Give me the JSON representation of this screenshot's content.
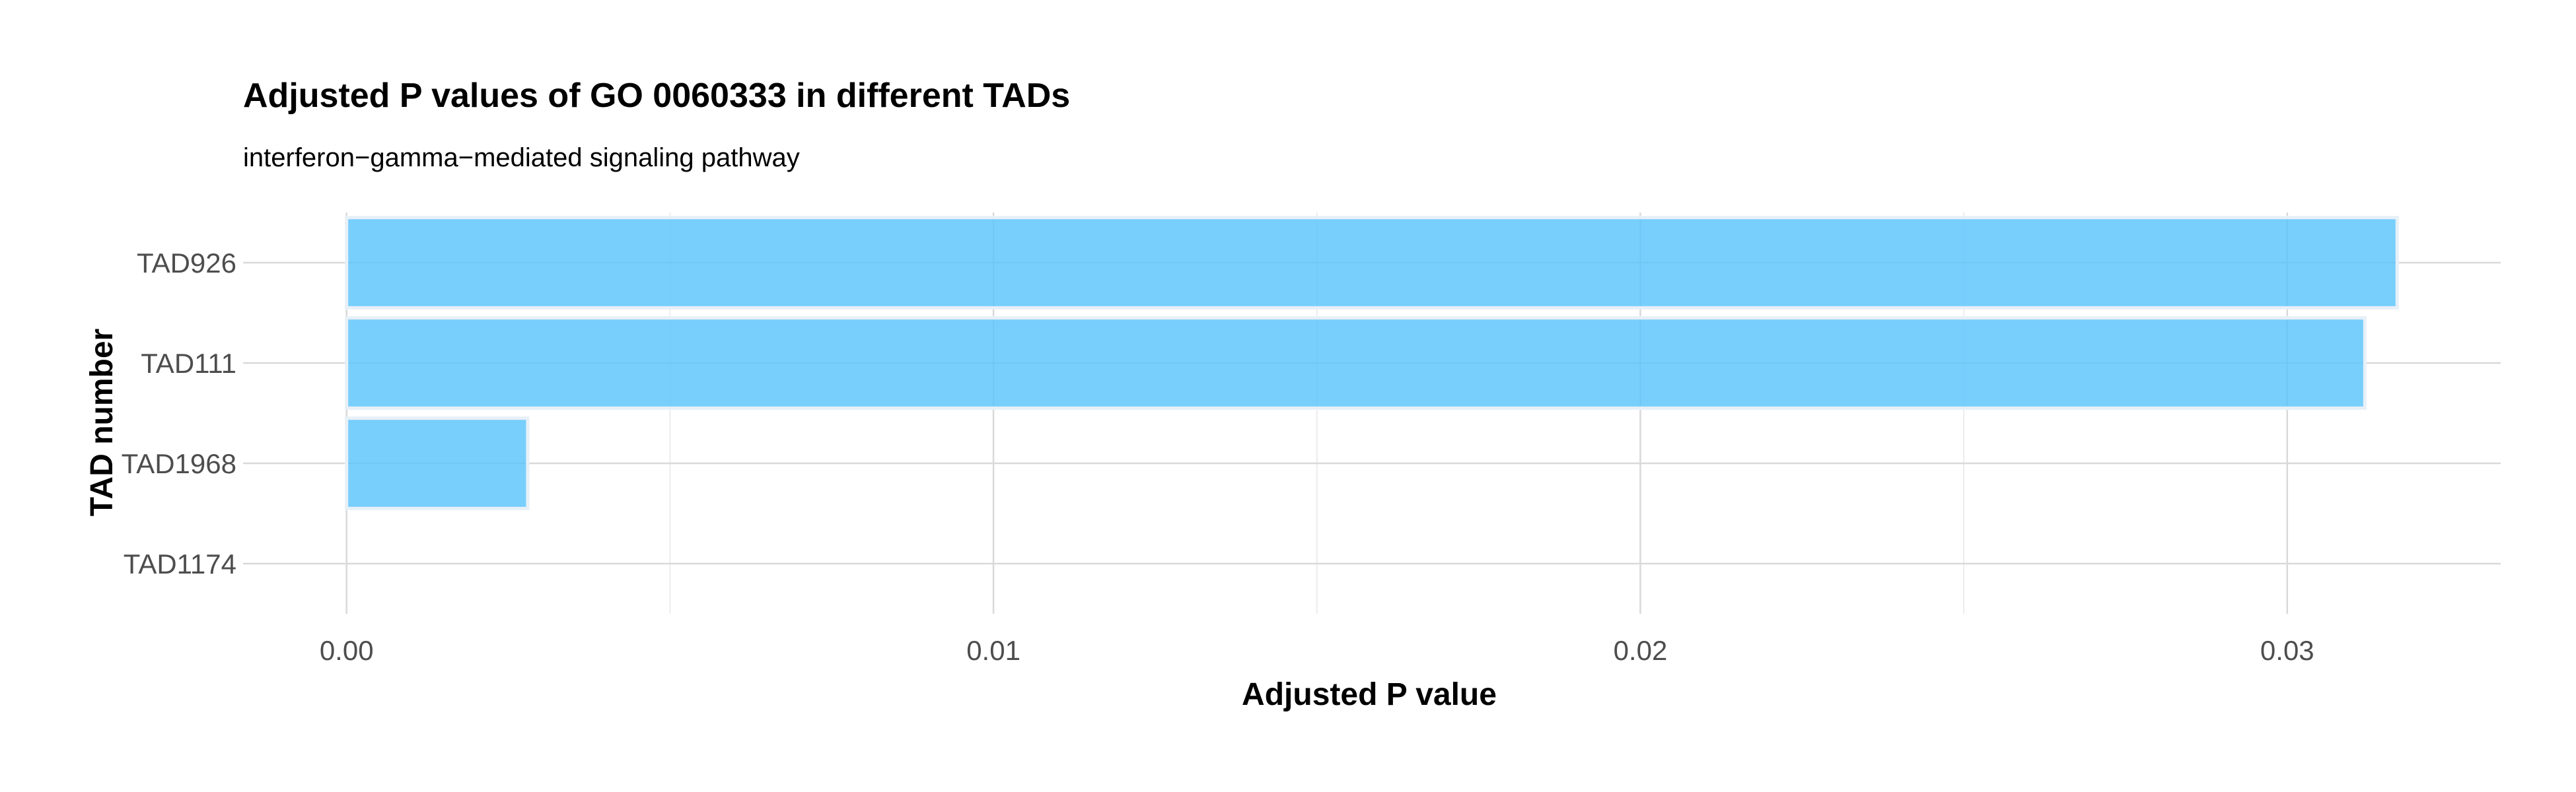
{
  "chart_data": {
    "type": "bar",
    "orientation": "horizontal",
    "title": "Adjusted P values of GO 0060333 in different TADs",
    "subtitle": "interferon−gamma−mediated signaling pathway",
    "xlabel": "Adjusted P value",
    "ylabel": "TAD number",
    "categories": [
      "TAD926",
      "TAD111",
      "TAD1968",
      "TAD1174"
    ],
    "values": [
      0.0317,
      0.0312,
      0.0028,
      0.0
    ],
    "xlim": [
      -0.0016,
      0.0333
    ],
    "x_ticks": [
      0.0,
      0.01,
      0.02,
      0.03
    ],
    "x_tick_labels": [
      "0.00",
      "0.01",
      "0.02",
      "0.03"
    ],
    "x_minor_ticks": [
      0.005,
      0.015,
      0.025
    ],
    "grid": true,
    "bar_color": "#5bc4fb"
  }
}
